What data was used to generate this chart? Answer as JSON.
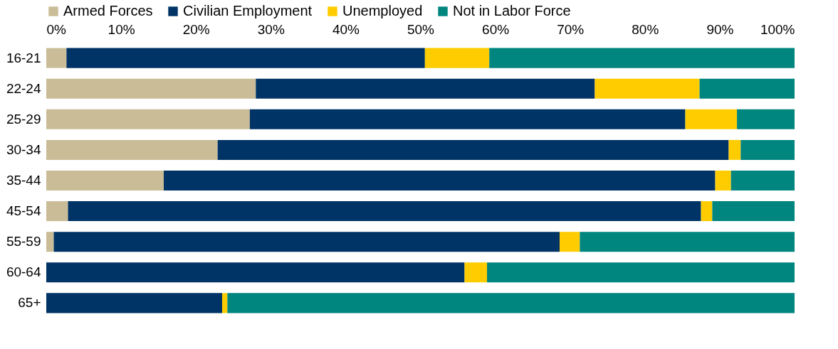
{
  "chart_data": {
    "type": "bar",
    "orientation": "horizontal",
    "stacked": true,
    "legend": "top",
    "grid": false,
    "categories": [
      "16-21",
      "22-24",
      "25-29",
      "30-34",
      "35-44",
      "45-54",
      "55-59",
      "60-64",
      "65+"
    ],
    "xlim": [
      0,
      100
    ],
    "xticks": [
      {
        "value": 0,
        "label": "0%"
      },
      {
        "value": 10,
        "label": "10%"
      },
      {
        "value": 20,
        "label": "20%"
      },
      {
        "value": 30,
        "label": "30%"
      },
      {
        "value": 40,
        "label": "40%"
      },
      {
        "value": 50,
        "label": "50%"
      },
      {
        "value": 60,
        "label": "60%"
      },
      {
        "value": 70,
        "label": "70%"
      },
      {
        "value": 80,
        "label": "80%"
      },
      {
        "value": 90,
        "label": "90%"
      },
      {
        "value": 100,
        "label": "100%"
      }
    ],
    "series": [
      {
        "name": "Armed Forces",
        "color": "#c9bc96",
        "values": [
          2.7,
          28.0,
          27.2,
          22.9,
          15.7,
          2.9,
          1.0,
          0,
          0
        ]
      },
      {
        "name": "Civilian Employment",
        "color": "#003366",
        "values": [
          47.9,
          45.3,
          58.2,
          68.3,
          73.7,
          84.6,
          67.6,
          55.9,
          23.5
        ]
      },
      {
        "name": "Unemployed",
        "color": "#ffcc00",
        "values": [
          8.6,
          14.0,
          6.9,
          1.6,
          2.1,
          1.5,
          2.7,
          3.0,
          0.7
        ]
      },
      {
        "name": "Not in Labor Force",
        "color": "#00857f",
        "values": [
          40.8,
          12.7,
          7.7,
          7.2,
          8.5,
          11.0,
          28.7,
          41.1,
          75.8
        ]
      }
    ]
  }
}
